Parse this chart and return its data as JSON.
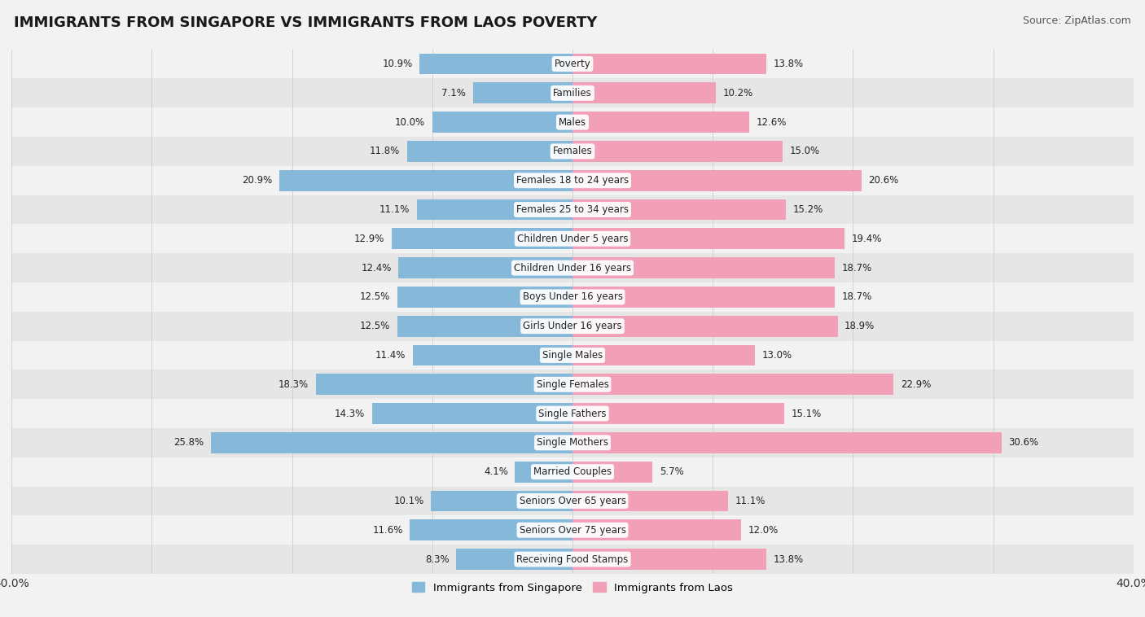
{
  "title": "IMMIGRANTS FROM SINGAPORE VS IMMIGRANTS FROM LAOS POVERTY",
  "source": "Source: ZipAtlas.com",
  "categories": [
    "Poverty",
    "Families",
    "Males",
    "Females",
    "Females 18 to 24 years",
    "Females 25 to 34 years",
    "Children Under 5 years",
    "Children Under 16 years",
    "Boys Under 16 years",
    "Girls Under 16 years",
    "Single Males",
    "Single Females",
    "Single Fathers",
    "Single Mothers",
    "Married Couples",
    "Seniors Over 65 years",
    "Seniors Over 75 years",
    "Receiving Food Stamps"
  ],
  "singapore_values": [
    10.9,
    7.1,
    10.0,
    11.8,
    20.9,
    11.1,
    12.9,
    12.4,
    12.5,
    12.5,
    11.4,
    18.3,
    14.3,
    25.8,
    4.1,
    10.1,
    11.6,
    8.3
  ],
  "laos_values": [
    13.8,
    10.2,
    12.6,
    15.0,
    20.6,
    15.2,
    19.4,
    18.7,
    18.7,
    18.9,
    13.0,
    22.9,
    15.1,
    30.6,
    5.7,
    11.1,
    12.0,
    13.8
  ],
  "singapore_color": "#85b8d9",
  "laos_color": "#f2a0b8",
  "bar_height": 0.72,
  "xlim": 40.0,
  "background_color": "#f2f2f2",
  "row_light_color": "#f2f2f2",
  "row_dark_color": "#e6e6e6",
  "label_singapore": "Immigrants from Singapore",
  "label_laos": "Immigrants from Laos",
  "title_fontsize": 13,
  "source_fontsize": 9,
  "bar_label_fontsize": 8.5,
  "category_fontsize": 8.5
}
